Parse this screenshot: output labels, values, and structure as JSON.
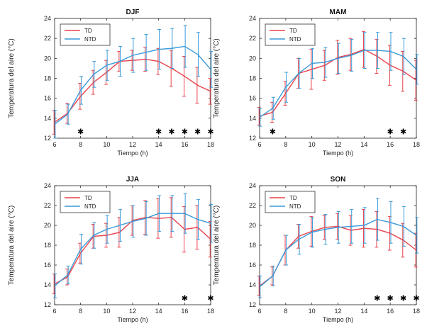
{
  "figure": {
    "colors": {
      "td": "#e8434c",
      "ntd": "#3a9ad9",
      "axis": "#222222"
    },
    "shared": {
      "xlabel": "Tiempo (h)",
      "ylabel": "Temperatura del aire (°C)",
      "xticks": [
        "6",
        "8",
        "10",
        "12",
        "14",
        "16",
        "18"
      ],
      "yticks": [
        "12",
        "14",
        "16",
        "18",
        "20",
        "22",
        "24"
      ],
      "legend": [
        "TD",
        "NTD"
      ],
      "sig_marker": "✱"
    }
  },
  "chart_data": [
    {
      "type": "line",
      "title": "DJF",
      "xlabel": "Tiempo (h)",
      "ylabel": "Temperatura del aire (°C)",
      "xlim": [
        6,
        18
      ],
      "ylim": [
        12,
        24
      ],
      "x": [
        6,
        7,
        8,
        9,
        10,
        11,
        12,
        13,
        14,
        15,
        16,
        17,
        18
      ],
      "legend_position": "top-left",
      "series": [
        {
          "name": "TD",
          "values": [
            13.6,
            14.5,
            16.2,
            17.6,
            18.6,
            19.7,
            19.8,
            19.9,
            19.7,
            19.0,
            18.2,
            17.3,
            16.7
          ],
          "errors": [
            1.2,
            1.0,
            1.3,
            1.2,
            1.2,
            1.0,
            1.0,
            1.2,
            1.3,
            1.8,
            2.0,
            1.8,
            1.3
          ]
        },
        {
          "name": "NTD",
          "values": [
            13.4,
            14.4,
            16.8,
            18.4,
            19.3,
            19.7,
            20.3,
            20.6,
            20.9,
            21.0,
            21.2,
            20.4,
            18.9
          ],
          "errors": [
            1.4,
            1.0,
            1.4,
            1.3,
            1.5,
            1.5,
            1.7,
            1.8,
            2.0,
            2.0,
            2.1,
            2.2,
            1.8
          ]
        }
      ],
      "significant_x": [
        8,
        14,
        15,
        16,
        17,
        18
      ]
    },
    {
      "type": "line",
      "title": "MAM",
      "xlabel": "Tiempo (h)",
      "ylabel": "Temperatura del aire (°C)",
      "xlim": [
        6,
        18
      ],
      "ylim": [
        12,
        24
      ],
      "x": [
        6,
        7,
        8,
        9,
        10,
        11,
        12,
        13,
        14,
        15,
        16,
        17,
        18
      ],
      "legend_position": "top-left",
      "series": [
        {
          "name": "TD",
          "values": [
            14.2,
            14.6,
            16.5,
            18.5,
            18.9,
            19.3,
            20.1,
            20.4,
            20.9,
            20.2,
            19.3,
            18.7,
            17.8
          ],
          "errors": [
            0.9,
            1.0,
            1.2,
            1.5,
            2.0,
            1.5,
            1.7,
            1.6,
            1.8,
            1.7,
            2.0,
            2.0,
            2.0
          ]
        },
        {
          "name": "NTD",
          "values": [
            14.1,
            15.0,
            17.1,
            18.5,
            19.5,
            19.6,
            20.0,
            20.3,
            20.8,
            20.8,
            20.7,
            20.2,
            18.9
          ],
          "errors": [
            0.9,
            1.1,
            1.5,
            1.5,
            1.5,
            1.5,
            1.5,
            1.6,
            1.8,
            1.8,
            1.9,
            1.8,
            1.5
          ]
        }
      ],
      "significant_x": [
        7,
        16,
        17
      ]
    },
    {
      "type": "line",
      "title": "JJA",
      "xlabel": "Tiempo (h)",
      "ylabel": "Temperatura del aire (°C)",
      "xlim": [
        6,
        18
      ],
      "ylim": [
        12,
        24
      ],
      "x": [
        6,
        7,
        8,
        9,
        10,
        11,
        12,
        13,
        14,
        15,
        16,
        17,
        18
      ],
      "legend_position": "top-left",
      "series": [
        {
          "name": "TD",
          "values": [
            14.1,
            14.8,
            17.2,
            18.9,
            19.0,
            19.3,
            20.5,
            20.8,
            20.7,
            20.8,
            19.6,
            19.8,
            18.6
          ],
          "errors": [
            1.0,
            0.8,
            1.0,
            1.2,
            1.2,
            1.5,
            1.5,
            1.7,
            2.0,
            2.0,
            2.3,
            2.2,
            1.8
          ]
        },
        {
          "name": "NTD",
          "values": [
            13.9,
            15.0,
            17.6,
            19.0,
            19.6,
            20.0,
            20.4,
            20.7,
            21.2,
            21.2,
            21.2,
            20.6,
            20.2
          ],
          "errors": [
            1.2,
            0.9,
            1.5,
            1.3,
            1.4,
            1.6,
            1.6,
            1.7,
            1.8,
            1.8,
            2.0,
            2.0,
            1.9
          ]
        }
      ],
      "significant_x": [
        16,
        18
      ]
    },
    {
      "type": "line",
      "title": "SON",
      "xlabel": "Tiempo (h)",
      "ylabel": "Temperatura del aire (°C)",
      "xlim": [
        6,
        18
      ],
      "ylim": [
        12,
        24
      ],
      "x": [
        6,
        7,
        8,
        9,
        10,
        11,
        12,
        13,
        14,
        15,
        16,
        17,
        18
      ],
      "legend_position": "top-left",
      "series": [
        {
          "name": "TD",
          "values": [
            13.9,
            14.9,
            17.5,
            18.9,
            19.4,
            19.8,
            19.9,
            19.5,
            19.7,
            19.6,
            19.2,
            18.5,
            17.5
          ],
          "errors": [
            1.0,
            0.9,
            1.5,
            1.2,
            1.5,
            1.2,
            1.3,
            1.5,
            1.9,
            1.8,
            1.7,
            1.7,
            1.7
          ]
        },
        {
          "name": "NTD",
          "values": [
            13.8,
            14.9,
            17.5,
            18.6,
            19.3,
            19.6,
            19.8,
            19.9,
            20.0,
            20.6,
            20.3,
            19.9,
            19.0
          ],
          "errors": [
            1.1,
            1.0,
            1.5,
            1.5,
            1.5,
            1.5,
            1.6,
            1.7,
            1.8,
            2.1,
            2.1,
            2.0,
            1.8
          ]
        }
      ],
      "significant_x": [
        15,
        16,
        17,
        18
      ]
    }
  ]
}
